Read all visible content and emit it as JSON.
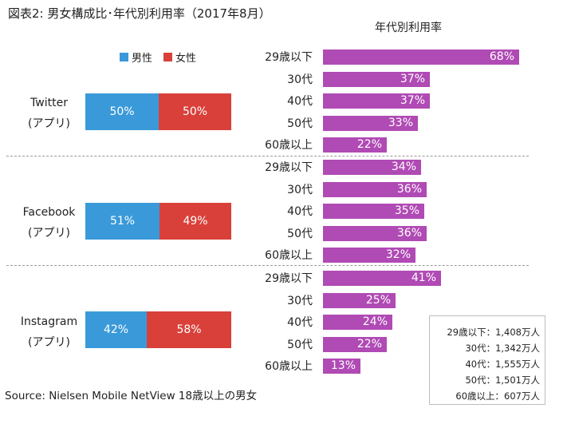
{
  "title": "図表2:  男女構成比･年代別利用率（2017年8月）",
  "source": "Source:  Nielsen Mobile NetView 18歳以上の男女",
  "right_header": "年代別利用率",
  "colors": {
    "male": "#3a9ad9",
    "female": "#d9403a",
    "age_bar": "#b04ab4"
  },
  "legend": [
    {
      "label": "男性",
      "color": "#3a9ad9"
    },
    {
      "label": "女性",
      "color": "#d9403a"
    }
  ],
  "platforms": [
    {
      "name": "Twitter",
      "sub": "(アプリ)"
    },
    {
      "name": "Facebook",
      "sub": "(アプリ)"
    },
    {
      "name": "Instagram",
      "sub": "(アプリ)"
    }
  ],
  "base_box": [
    "29歳以下：1,408万人",
    "30代：1,342万人",
    "40代：1,555万人",
    "50代：1,501万人",
    "60歳以上：607万人"
  ],
  "chart_data": [
    {
      "type": "bar",
      "title": "男女構成比",
      "orientation": "horizontal",
      "stacked": true,
      "categories": [
        "Twitter (アプリ)",
        "Facebook (アプリ)",
        "Instagram (アプリ)"
      ],
      "series": [
        {
          "name": "男性",
          "values": [
            50,
            51,
            42
          ],
          "labels": [
            "50%",
            "51%",
            "42%"
          ]
        },
        {
          "name": "女性",
          "values": [
            50,
            49,
            58
          ],
          "labels": [
            "50%",
            "49%",
            "58%"
          ]
        }
      ],
      "xlim": [
        0,
        100
      ]
    },
    {
      "type": "bar",
      "title": "年代別利用率",
      "orientation": "horizontal",
      "categories": [
        "29歳以下",
        "30代",
        "40代",
        "50代",
        "60歳以上"
      ],
      "groups": [
        {
          "platform": "Twitter",
          "values": [
            68,
            37,
            37,
            33,
            22
          ],
          "labels": [
            "68%",
            "37%",
            "37%",
            "33%",
            "22%"
          ]
        },
        {
          "platform": "Facebook",
          "values": [
            34,
            36,
            35,
            36,
            32
          ],
          "labels": [
            "34%",
            "36%",
            "35%",
            "36%",
            "32%"
          ]
        },
        {
          "platform": "Instagram",
          "values": [
            41,
            25,
            24,
            22,
            13
          ],
          "labels": [
            "41%",
            "25%",
            "24%",
            "22%",
            "13%"
          ]
        }
      ],
      "xlim": [
        0,
        100
      ]
    }
  ]
}
